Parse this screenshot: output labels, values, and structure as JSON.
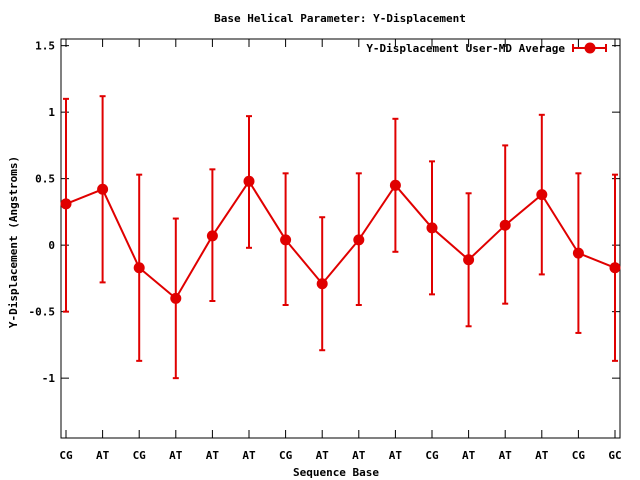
{
  "chart_data": {
    "type": "line",
    "title": "Base  Helical Parameter: Y-Displacement",
    "xlabel": "Sequence Base",
    "ylabel": "Y-Displacement (Angstroms)",
    "categories": [
      "CG",
      "AT",
      "CG",
      "AT",
      "AT",
      "AT",
      "CG",
      "AT",
      "AT",
      "AT",
      "CG",
      "AT",
      "AT",
      "AT",
      "CG",
      "GC"
    ],
    "ylim": [
      -1.45,
      1.55
    ],
    "yticks": [
      1.5,
      1,
      0.5,
      0,
      -0.5,
      -1
    ],
    "ytick_labels": [
      "1.5",
      "1",
      "0.5",
      "0",
      "-0.5",
      "-1"
    ],
    "legend_position": "top-right",
    "grid": false,
    "series": [
      {
        "name": "Y-Displacement User-MD Average",
        "color": "#e00000",
        "values": [
          0.31,
          0.42,
          -0.17,
          -0.4,
          0.07,
          0.48,
          0.04,
          -0.29,
          0.04,
          0.45,
          0.13,
          -0.11,
          0.15,
          0.38,
          -0.06,
          -0.17
        ],
        "error_low": [
          -0.5,
          -0.28,
          -0.87,
          -1.0,
          -0.42,
          -0.02,
          -0.45,
          -0.79,
          -0.45,
          -0.05,
          -0.37,
          -0.61,
          -0.44,
          -0.22,
          -0.66,
          -0.87
        ],
        "error_high": [
          1.1,
          1.12,
          0.53,
          0.2,
          0.57,
          0.97,
          0.54,
          0.21,
          0.54,
          0.95,
          0.63,
          0.39,
          0.75,
          0.98,
          0.54,
          0.53
        ]
      }
    ]
  }
}
